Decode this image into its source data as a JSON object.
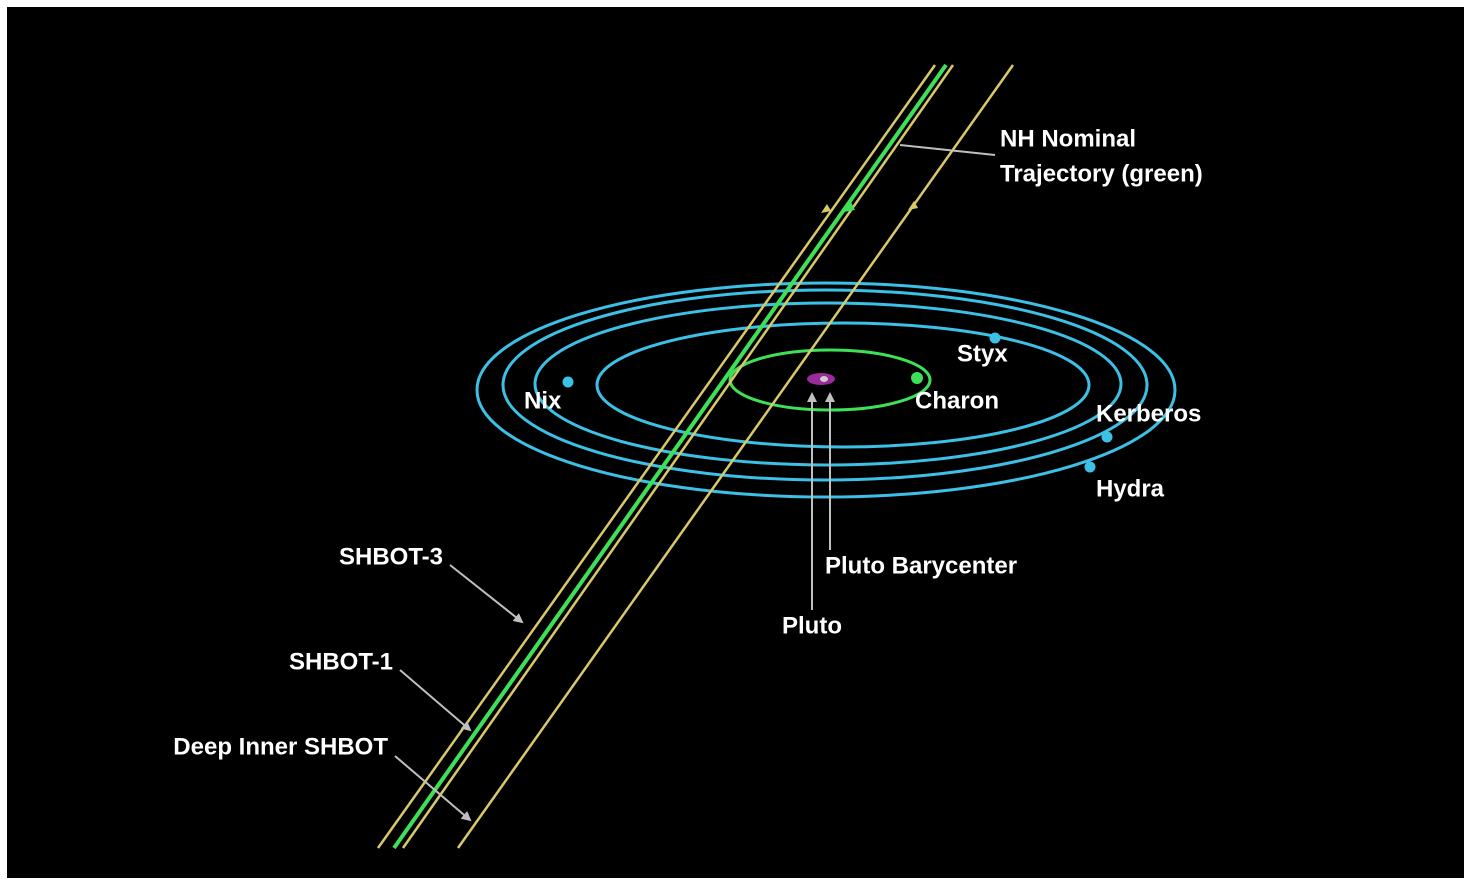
{
  "labels": {
    "nominal_trajectory": [
      "NH Nominal",
      "Trajectory (green)"
    ],
    "moons": {
      "styx": "Styx",
      "nix": "Nix",
      "charon": "Charon",
      "kerberos": "Kerberos",
      "hydra": "Hydra"
    },
    "barycenter": "Pluto Barycenter",
    "pluto": "Pluto",
    "trajectories": {
      "shbot3": "SHBOT-3",
      "shbot1": "SHBOT-1",
      "deep_inner": "Deep Inner SHBOT"
    }
  }
}
